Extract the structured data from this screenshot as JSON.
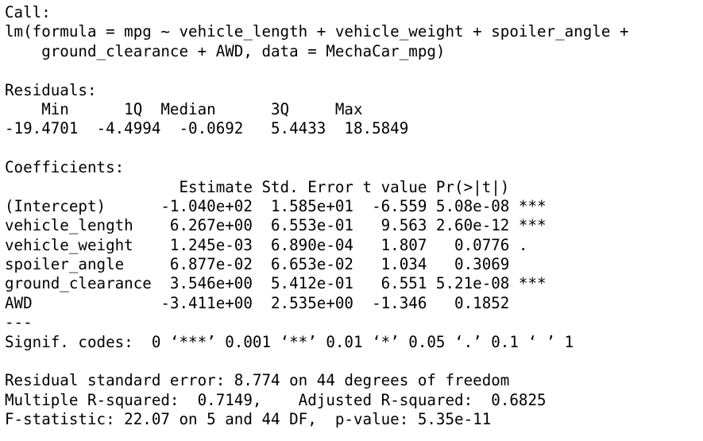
{
  "call": {
    "label": "Call:",
    "formula_line1": "lm(formula = mpg ~ vehicle_length + vehicle_weight + spoiler_angle +",
    "formula_line2": "    ground_clearance + AWD, data = MechaCar_mpg)"
  },
  "residuals": {
    "label": "Residuals:",
    "header": "    Min      1Q  Median      3Q     Max ",
    "values": "-19.4701  -4.4994  -0.0692   5.4433  18.5849 "
  },
  "coefficients": {
    "label": "Coefficients:",
    "header": "                   Estimate Std. Error t value Pr(>|t|)    ",
    "rows": [
      "(Intercept)      -1.040e+02  1.585e+01  -6.559 5.08e-08 ***",
      "vehicle_length    6.267e+00  6.553e-01   9.563 2.60e-12 ***",
      "vehicle_weight    1.245e-03  6.890e-04   1.807   0.0776 .  ",
      "spoiler_angle     6.877e-02  6.653e-02   1.034   0.3069    ",
      "ground_clearance  3.546e+00  5.412e-01   6.551 5.21e-08 ***",
      "AWD              -3.411e+00  2.535e+00  -1.346   0.1852    "
    ],
    "separator": "---",
    "signif_codes": "Signif. codes:  0 ‘***’ 0.001 ‘**’ 0.01 ‘*’ 0.05 ‘.’ 0.1 ‘ ’ 1"
  },
  "summary": {
    "residual_se": "Residual standard error: 8.774 on 44 degrees of freedom",
    "r_squared": "Multiple R-squared:  0.7149,\tAdjusted R-squared:  0.6825 ",
    "f_statistic": "F-statistic: 22.07 on 5 and 44 DF,  p-value: 5.35e-11"
  }
}
